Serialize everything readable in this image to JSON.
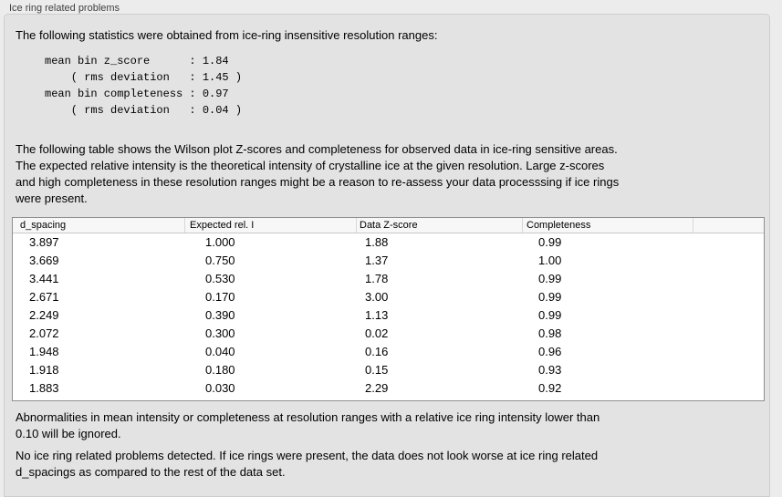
{
  "panel_title": "Ice ring related problems",
  "intro_text": "The following statistics were obtained from ice-ring insensitive resolution ranges:",
  "stats_lines": [
    "mean bin z_score      : 1.84",
    "    ( rms deviation   : 1.45 )",
    "mean bin completeness : 0.97",
    "    ( rms deviation   : 0.04 )"
  ],
  "stats_values": {
    "mean_bin_z_score": "1.84",
    "z_score_rms_deviation": "1.45",
    "mean_bin_completeness": "0.97",
    "completeness_rms_deviation": "0.04"
  },
  "description_lines": [
    "The following table shows the Wilson plot Z-scores and completeness for observed data in ice-ring sensitive areas.",
    "The expected relative intensity is the theoretical intensity of crystalline ice at the given resolution. Large z-scores",
    "and high completeness in these resolution ranges might be a reason to re-assess your data processsing if ice rings",
    "were present."
  ],
  "table": {
    "columns": [
      "d_spacing",
      "Expected rel. I",
      "Data Z-score",
      "Completeness"
    ],
    "rows": [
      [
        "3.897",
        "1.000",
        "1.88",
        "0.99"
      ],
      [
        "3.669",
        "0.750",
        "1.37",
        "1.00"
      ],
      [
        "3.441",
        "0.530",
        "1.78",
        "0.99"
      ],
      [
        "2.671",
        "0.170",
        "3.00",
        "0.99"
      ],
      [
        "2.249",
        "0.390",
        "1.13",
        "0.99"
      ],
      [
        "2.072",
        "0.300",
        "0.02",
        "0.98"
      ],
      [
        "1.948",
        "0.040",
        "0.16",
        "0.96"
      ],
      [
        "1.918",
        "0.180",
        "0.15",
        "0.93"
      ],
      [
        "1.883",
        "0.030",
        "2.29",
        "0.92"
      ]
    ]
  },
  "note_lines": [
    "Abnormalities in mean intensity or completeness at resolution ranges with a relative ice ring intensity lower than",
    "0.10 will be ignored."
  ],
  "conclusion_lines": [
    "No ice ring related problems detected. If ice rings were present, the data does not look worse at ice ring related",
    "d_spacings as compared to the rest of the data set."
  ],
  "colors": {
    "page_bg": "#ececec",
    "panel_bg": "#e3e3e3",
    "panel_border": "#cdcdcd",
    "table_border": "#8f8f8f",
    "table_header_bg": "#f7f7f7",
    "text": "#000000",
    "title_text": "#3f3f3f"
  }
}
